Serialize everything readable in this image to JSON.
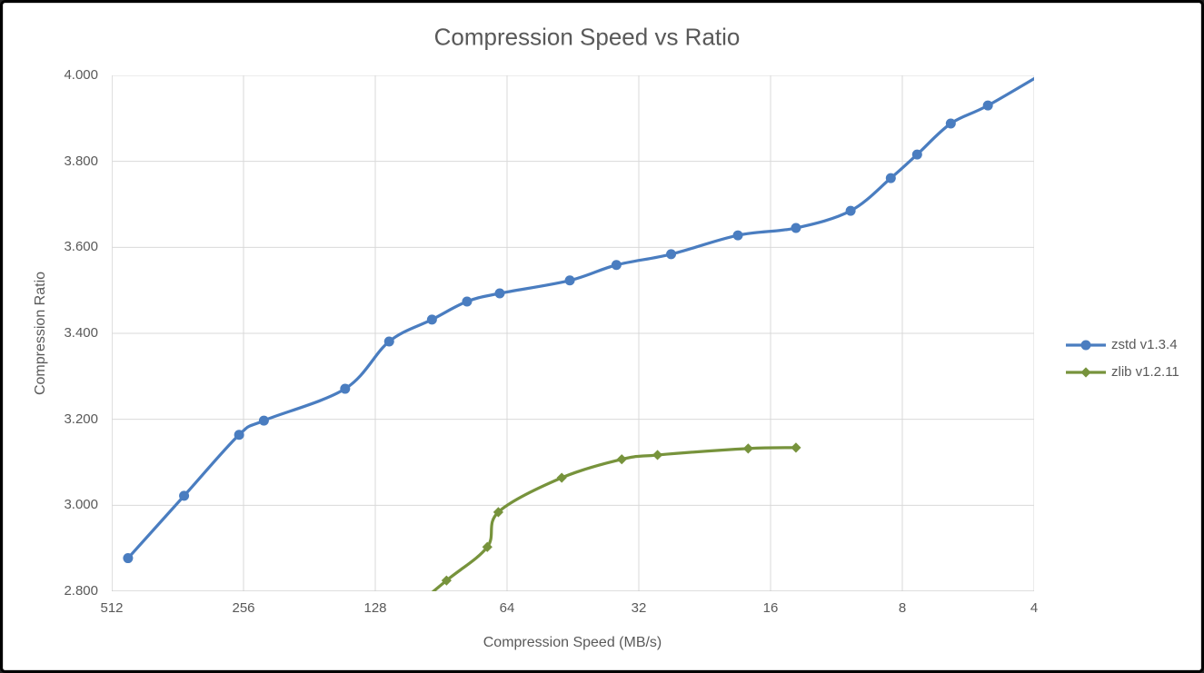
{
  "style": {
    "background": "#FFFFFF",
    "frame_border_color": "#000000",
    "inner_border_color": "#D9D9D9",
    "title_color": "#595959",
    "axis_text_color": "#595959",
    "gridline_color": "#D9D9D9",
    "axis_line_color": "#BFBFBF"
  },
  "chart_data": {
    "type": "line",
    "title": "Compression Speed vs Ratio",
    "xlabel": "Compression Speed (MB/s)",
    "ylabel": "Compression Ratio",
    "x_scale": "log2_reversed",
    "xlim": [
      512,
      4
    ],
    "ylim": [
      2.8,
      4.0
    ],
    "x_tick_values": [
      512,
      256,
      128,
      64,
      32,
      16,
      8,
      4
    ],
    "x_tick_labels": [
      "512",
      "256",
      "128",
      "64",
      "32",
      "16",
      "8",
      "4"
    ],
    "y_tick_values": [
      4.0,
      3.8,
      3.6,
      3.4,
      3.2,
      3.0,
      2.8
    ],
    "y_tick_labels": [
      "4.000",
      "3.800",
      "3.600",
      "3.400",
      "3.200",
      "3.000",
      "2.800"
    ],
    "grid": true,
    "smooth_lines": true,
    "legend_position": "right",
    "series": [
      {
        "name": "zstd v1.3.4",
        "color": "#4A7DC0",
        "marker": "circle",
        "points": [
          [
            470,
            2.877
          ],
          [
            350,
            3.022
          ],
          [
            262,
            3.164
          ],
          [
            230,
            3.197
          ],
          [
            150,
            3.271
          ],
          [
            119,
            3.381
          ],
          [
            95,
            3.432
          ],
          [
            79,
            3.474
          ],
          [
            66.5,
            3.493
          ],
          [
            46,
            3.523
          ],
          [
            36,
            3.559
          ],
          [
            27,
            3.584
          ],
          [
            19,
            3.628
          ],
          [
            14,
            3.645
          ],
          [
            10.5,
            3.685
          ],
          [
            8.5,
            3.761
          ],
          [
            7.4,
            3.816
          ],
          [
            6.2,
            3.888
          ],
          [
            5.1,
            3.93
          ],
          [
            3.6,
            4.02
          ]
        ]
      },
      {
        "name": "zlib v1.2.11",
        "color": "#77933C",
        "marker": "diamond",
        "points": [
          [
            110,
            2.743
          ],
          [
            88,
            2.825
          ],
          [
            71,
            2.903
          ],
          [
            67,
            2.984
          ],
          [
            48,
            3.064
          ],
          [
            35,
            3.107
          ],
          [
            29,
            3.117
          ],
          [
            18,
            3.132
          ],
          [
            14,
            3.134
          ]
        ]
      }
    ]
  }
}
